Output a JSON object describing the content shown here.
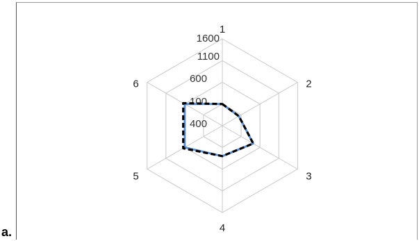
{
  "figure_label": "a.",
  "chart_data": {
    "type": "radar",
    "axes": [
      "1",
      "2",
      "3",
      "4",
      "5",
      "6"
    ],
    "range": [
      -400,
      1600
    ],
    "tick_labels": [
      "1600",
      "1100",
      "600",
      "100",
      "400"
    ],
    "grid": true,
    "series": [
      {
        "values": [
          100,
          40,
          420,
          300,
          600,
          600
        ],
        "color": "#5b8fd1",
        "line_style": "solid"
      },
      {
        "values": [
          100,
          40,
          420,
          300,
          640,
          640
        ],
        "color": "#000000",
        "line_style": "dashed"
      }
    ]
  }
}
